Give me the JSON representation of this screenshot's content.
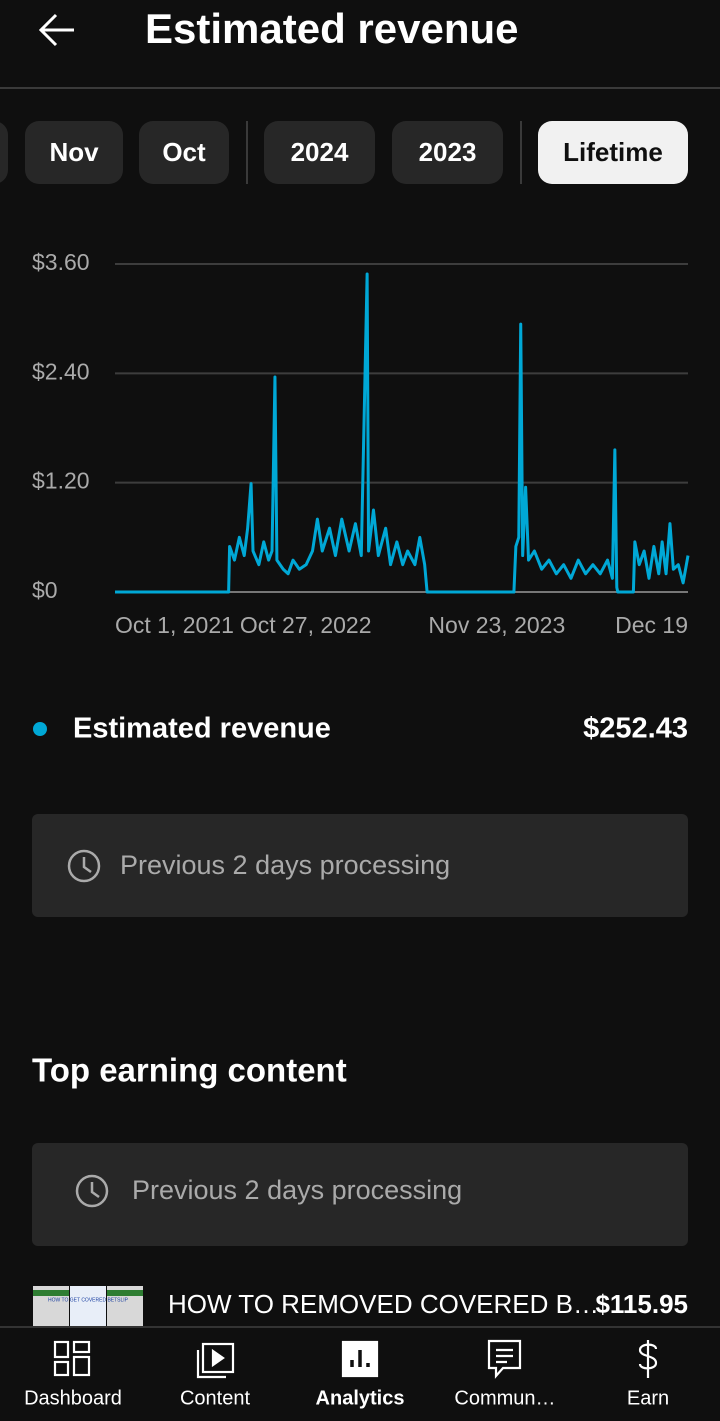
{
  "header": {
    "title": "Estimated revenue"
  },
  "filters": [
    {
      "label": "Nov",
      "selected": false
    },
    {
      "label": "Oct",
      "selected": false
    },
    {
      "label": "2024",
      "selected": false
    },
    {
      "label": "2023",
      "selected": false
    },
    {
      "label": "Lifetime",
      "selected": true
    }
  ],
  "chart_data": {
    "type": "line",
    "x": [
      "2021-10-01",
      "2022-05-22",
      "2022-05-24",
      "2022-06-03",
      "2022-06-13",
      "2022-06-23",
      "2022-06-30",
      "2022-07-07",
      "2022-07-11",
      "2022-07-23",
      "2022-08-02",
      "2022-08-12",
      "2022-08-19",
      "2022-08-25",
      "2022-08-29",
      "2022-09-11",
      "2022-09-21",
      "2022-10-01",
      "2022-10-14",
      "2022-10-28",
      "2022-11-10",
      "2022-11-20",
      "2022-11-30",
      "2022-12-15",
      "2022-12-27",
      "2023-01-09",
      "2023-01-24",
      "2023-02-06",
      "2023-02-18",
      "2023-03-02",
      "2023-03-05",
      "2023-03-15",
      "2023-03-25",
      "2023-04-09",
      "2023-04-19",
      "2023-05-02",
      "2023-05-14",
      "2023-05-24",
      "2023-06-08",
      "2023-06-18",
      "2023-06-28",
      "2023-07-03",
      "2023-12-28",
      "2024-01-01",
      "2024-01-07",
      "2024-01-11",
      "2024-01-15",
      "2024-01-21",
      "2024-01-27",
      "2024-02-08",
      "2024-02-23",
      "2024-03-09",
      "2024-03-24",
      "2024-04-08",
      "2024-04-23",
      "2024-05-08",
      "2024-05-23",
      "2024-06-07",
      "2024-06-22",
      "2024-07-07",
      "2024-07-17",
      "2024-07-22",
      "2024-07-26",
      "2024-07-28",
      "2024-08-29",
      "2024-09-01",
      "2024-09-10",
      "2024-09-20",
      "2024-09-30",
      "2024-10-10",
      "2024-10-20",
      "2024-10-27",
      "2024-11-04",
      "2024-11-12",
      "2024-11-19",
      "2024-11-29",
      "2024-12-09",
      "2024-12-19"
    ],
    "series": [
      {
        "name": "Estimated revenue",
        "color": "#00a8d6",
        "values": [
          0,
          0,
          0.5,
          0.35,
          0.6,
          0.4,
          0.7,
          1.19,
          0.45,
          0.3,
          0.55,
          0.35,
          0.45,
          2.36,
          0.35,
          0.25,
          0.2,
          0.35,
          0.25,
          0.3,
          0.45,
          0.8,
          0.45,
          0.7,
          0.4,
          0.8,
          0.45,
          0.75,
          0.4,
          3.49,
          0.45,
          0.9,
          0.4,
          0.7,
          0.3,
          0.55,
          0.3,
          0.45,
          0.3,
          0.6,
          0.3,
          0,
          0,
          0.5,
          0.6,
          2.94,
          0.4,
          1.15,
          0.35,
          0.45,
          0.25,
          0.35,
          0.2,
          0.3,
          0.15,
          0.35,
          0.2,
          0.3,
          0.2,
          0.35,
          0.15,
          1.56,
          0.05,
          0,
          0,
          0.55,
          0.3,
          0.45,
          0.15,
          0.5,
          0.2,
          0.55,
          0.2,
          0.75,
          0.25,
          0.3,
          0.1,
          0.4
        ]
      }
    ],
    "xlim": [
      "2021-10-01",
      "2024-12-19"
    ],
    "xticks": [
      {
        "value": "2021-10-01",
        "label": "Oct 1, 2021"
      },
      {
        "value": "2022-10-27",
        "label": "Oct 27, 2022"
      },
      {
        "value": "2023-11-23",
        "label": "Nov 23, 2023"
      },
      {
        "value": "2024-12-19",
        "label": "Dec 19"
      }
    ],
    "ylim": [
      0,
      3.6
    ],
    "yticks": [
      {
        "value": 0,
        "label": "$0"
      },
      {
        "value": 1.2,
        "label": "$1.20"
      },
      {
        "value": 2.4,
        "label": "$2.40"
      },
      {
        "value": 3.6,
        "label": "$3.60"
      }
    ],
    "grid": true
  },
  "summary": {
    "total": "$252.43"
  },
  "chart_notice": "Previous 2 days processing",
  "top_content": {
    "title": "Top earning content",
    "notice": "Previous 2 days processing",
    "items": [
      {
        "thumbnail_text": "HOW TO GET COVERED BETSLIP",
        "title": "HOW TO REMOVED COVERED B…",
        "revenue": "$115.95"
      }
    ]
  },
  "nav": [
    {
      "label": "Dashboard",
      "selected": false
    },
    {
      "label": "Content",
      "selected": false
    },
    {
      "label": "Analytics",
      "selected": true
    },
    {
      "label": "Commun…",
      "selected": false
    },
    {
      "label": "Earn",
      "selected": false
    }
  ]
}
